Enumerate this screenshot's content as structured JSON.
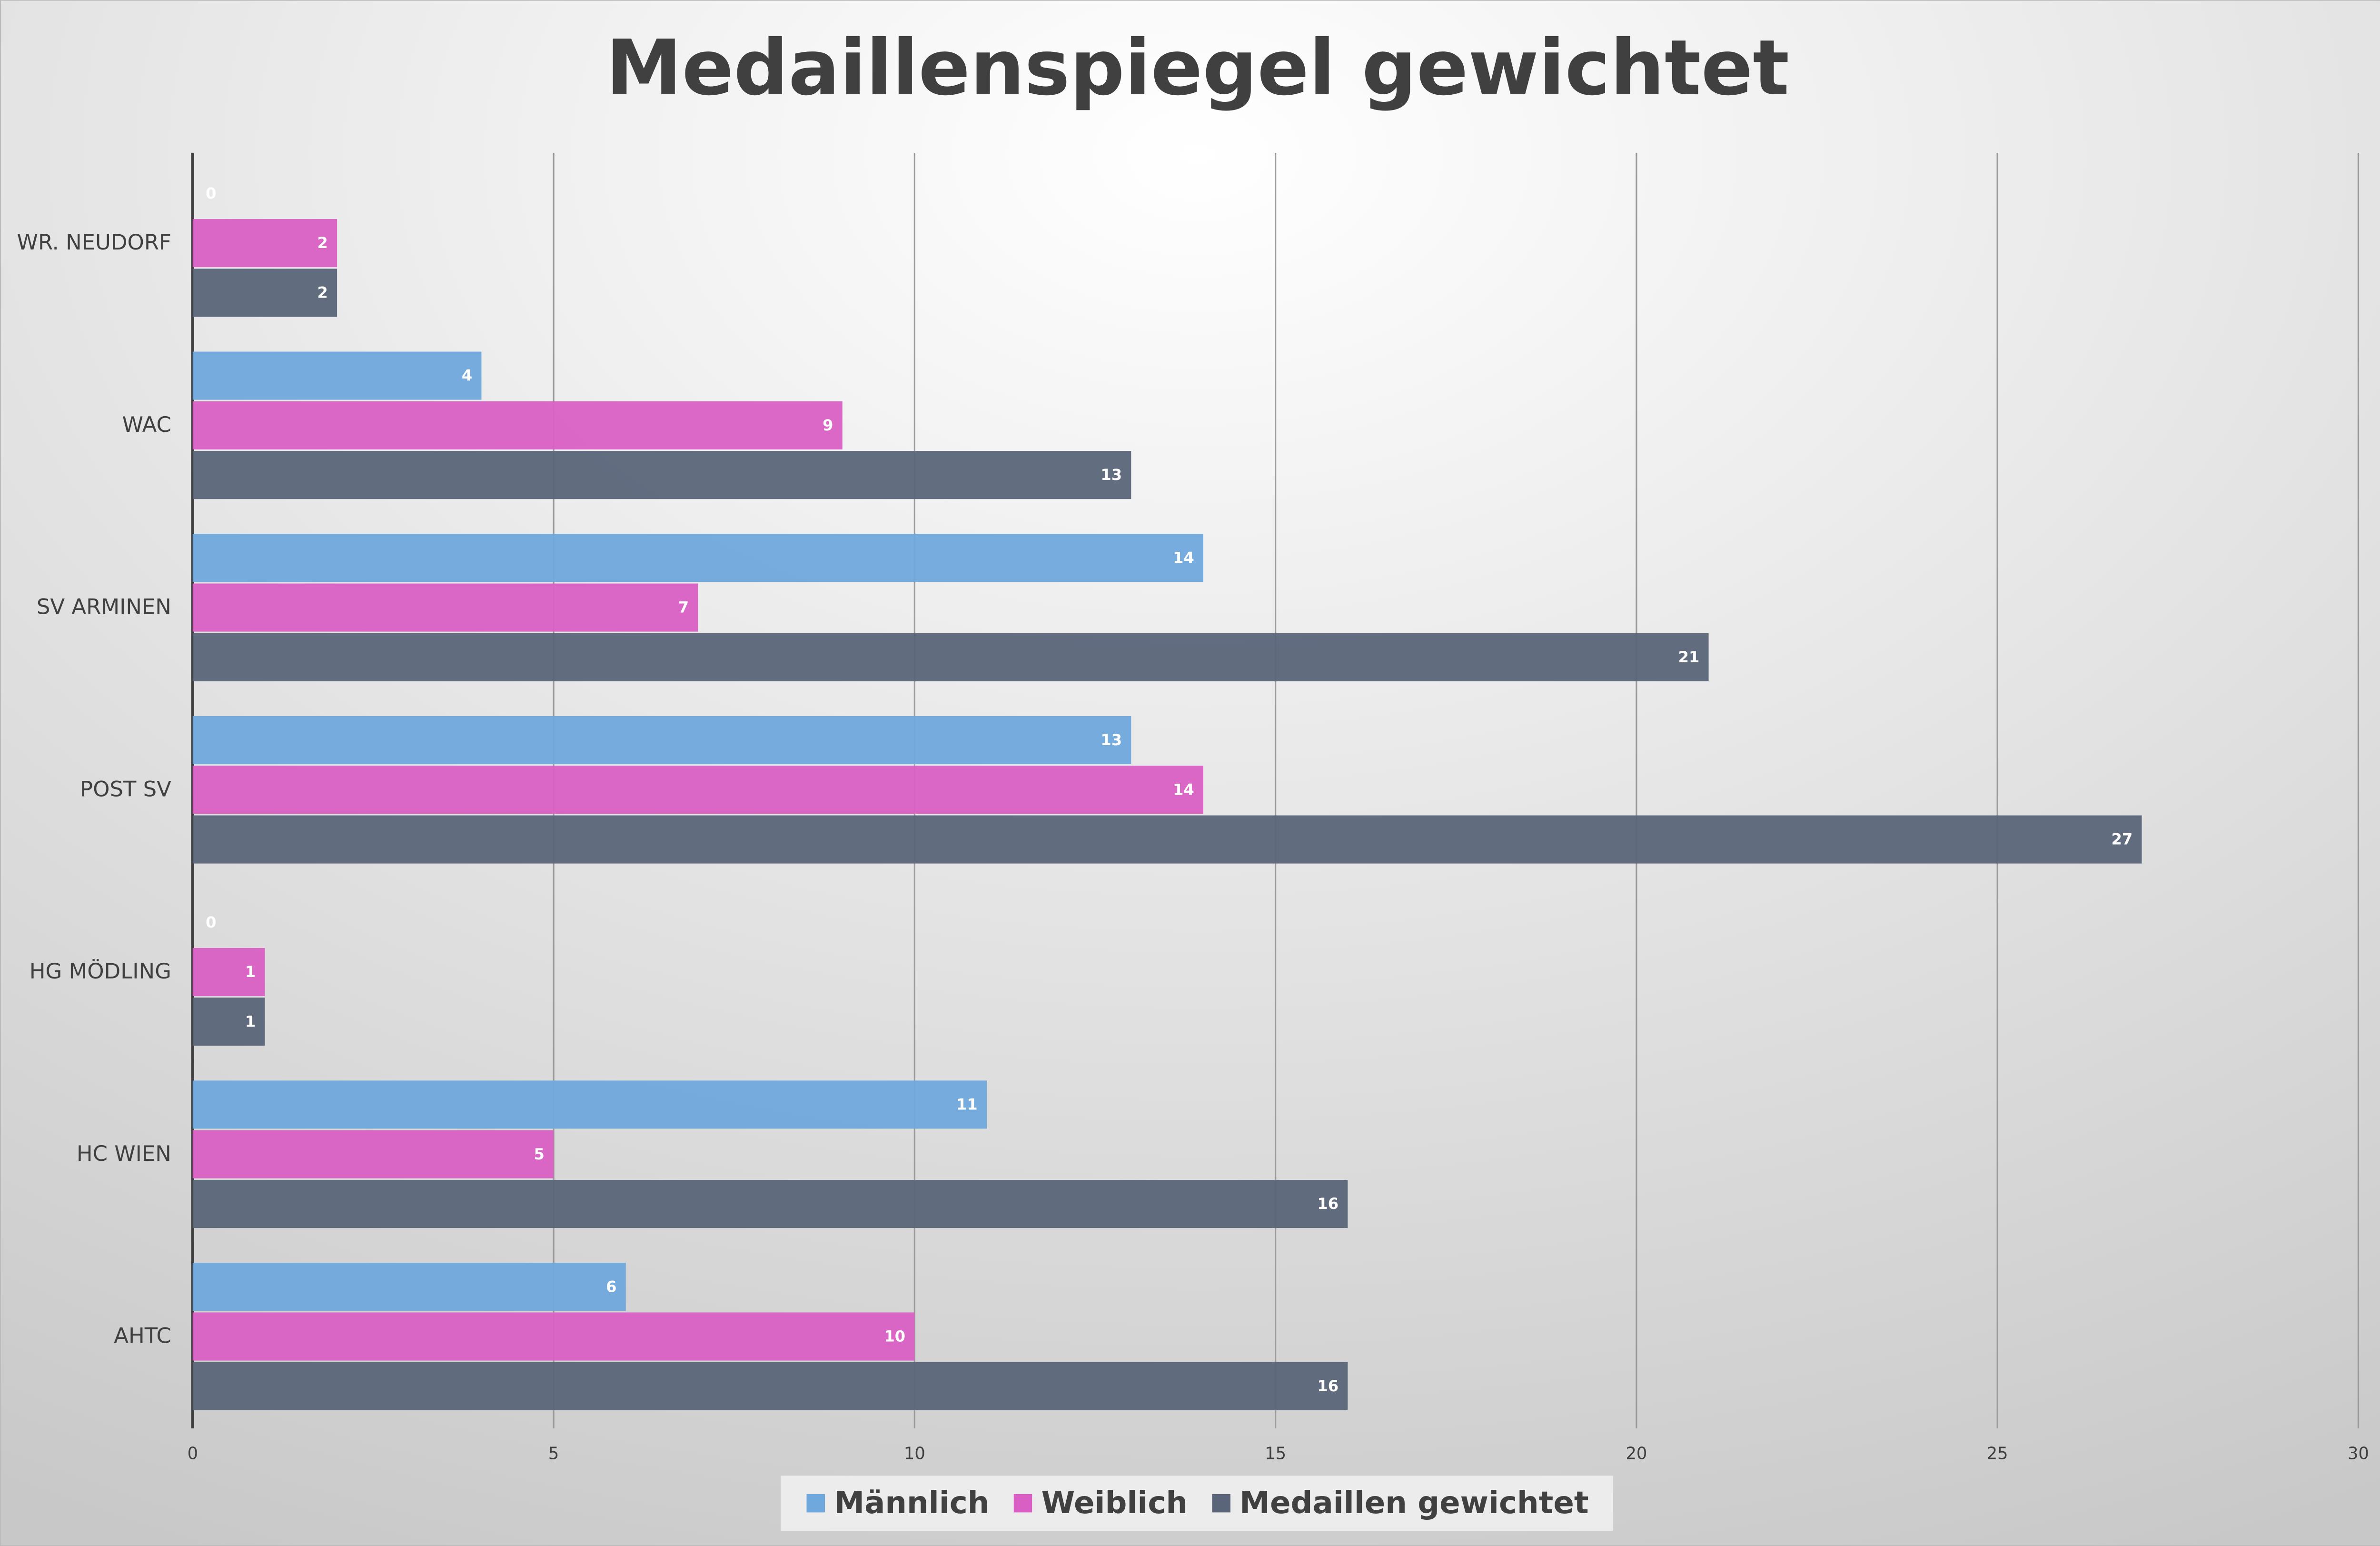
{
  "chart_data": {
    "type": "bar",
    "orientation": "horizontal",
    "title": "Medaillenspiegel gewichtet",
    "categories": [
      "WR. NEUDORF",
      "WAC",
      "SV ARMINEN",
      "POST SV",
      "HG MÖDLING",
      "HC WIEN",
      "AHTC"
    ],
    "series": [
      {
        "name": "Männlich",
        "color": "#6fa8dc",
        "values": [
          0,
          4,
          14,
          13,
          0,
          11,
          6
        ]
      },
      {
        "name": "Weiblich",
        "color": "#d95fc4",
        "values": [
          2,
          9,
          7,
          14,
          1,
          5,
          10
        ]
      },
      {
        "name": "Medaillen gewichtet",
        "color": "#5b6579",
        "values": [
          2,
          13,
          21,
          27,
          1,
          16,
          16
        ]
      }
    ],
    "xlim": [
      0,
      30
    ],
    "xticks": [
      0,
      5,
      10,
      15,
      20,
      25,
      30
    ],
    "grid": true,
    "legend": "bottom"
  }
}
